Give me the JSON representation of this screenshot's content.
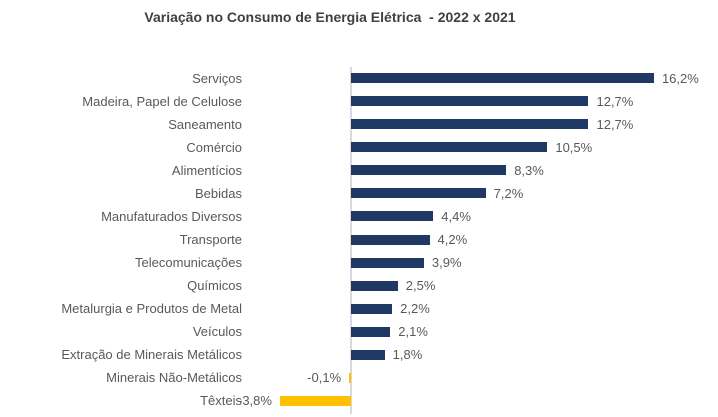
{
  "chart_data": {
    "type": "bar",
    "orientation": "horizontal",
    "title": "Variação no Consumo de Energia Elétrica  - 2022 x 2021",
    "categories": [
      "Serviços",
      "Madeira, Papel de Celulose",
      "Saneamento",
      "Comércio",
      "Alimentícios",
      "Bebidas",
      "Manufaturados Diversos",
      "Transporte",
      "Telecomunicações",
      "Químicos",
      "Metalurgia e Produtos de Metal",
      "Veículos",
      "Extração de Minerais Metálicos",
      "Minerais Não-Metálicos",
      "Têxteis"
    ],
    "values": [
      16.2,
      12.7,
      12.7,
      10.5,
      8.3,
      7.2,
      4.4,
      4.2,
      3.9,
      2.5,
      2.2,
      2.1,
      1.8,
      -0.1,
      -3.8
    ],
    "labels": [
      "16,2%",
      "12,7%",
      "12,7%",
      "10,5%",
      "8,3%",
      "7,2%",
      "4,4%",
      "4,2%",
      "3,9%",
      "2,5%",
      "2,2%",
      "2,1%",
      "1,8%",
      "-0,1%",
      "-3,8%"
    ],
    "unit": "%",
    "xlim": [
      -6,
      19.6
    ],
    "grid": false,
    "legend": false,
    "value_labels_position": "outside-end",
    "colors": {
      "positive_bar": "#1F3864",
      "negative_bar": "#FFC000",
      "axis_line": "#D9D9D9",
      "label_text": "#595959",
      "title_text": "#404040"
    }
  }
}
